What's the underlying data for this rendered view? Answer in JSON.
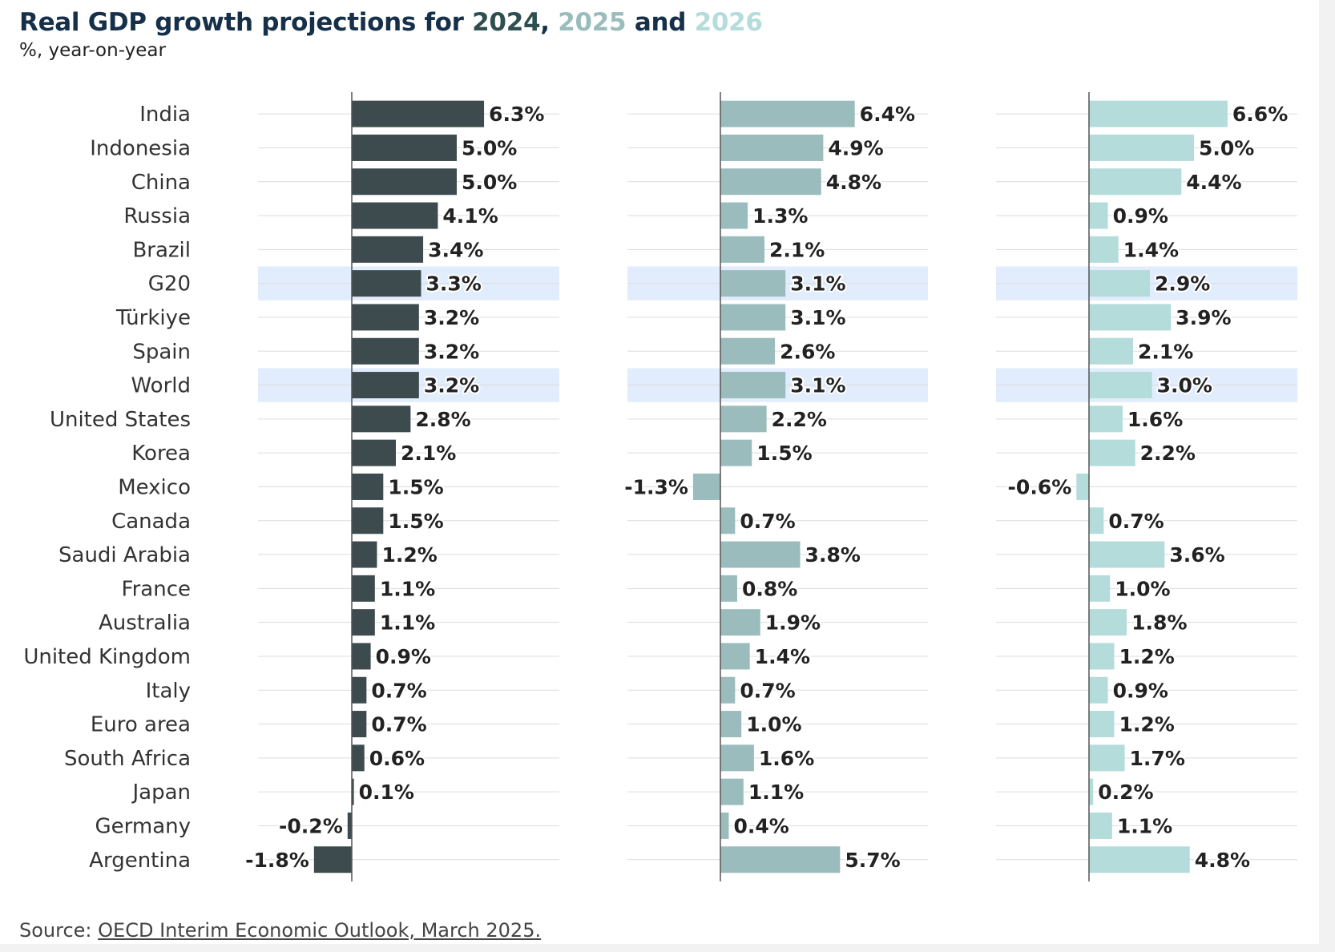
{
  "title": {
    "prefix": "Real GDP growth projections for ",
    "year1": "2024",
    "sep1": ", ",
    "year2": "2025",
    "sep2": " and ",
    "year3": "2026"
  },
  "subtitle": "%, year-on-year",
  "source": {
    "label": "Source: ",
    "link_text": "OECD Interim Economic Outlook, March 2025."
  },
  "colors": {
    "s2024": "#3d4b4f",
    "s2025": "#9bbcbd",
    "s2026": "#b3dcdb",
    "highlight": "#e1edfc",
    "title": "#16304a"
  },
  "chart_data": {
    "type": "bar",
    "orientation": "horizontal",
    "categories": [
      "India",
      "Indonesia",
      "China",
      "Russia",
      "Brazil",
      "G20",
      "Türkiye",
      "Spain",
      "World",
      "United States",
      "Korea",
      "Mexico",
      "Canada",
      "Saudi Arabia",
      "France",
      "Australia",
      "United Kingdom",
      "Italy",
      "Euro area",
      "South Africa",
      "Japan",
      "Germany",
      "Argentina"
    ],
    "highlighted_categories": [
      "G20",
      "World"
    ],
    "value_suffix": "%",
    "series": [
      {
        "name": "2024",
        "values": [
          6.3,
          5.0,
          5.0,
          4.1,
          3.4,
          3.3,
          3.2,
          3.2,
          3.2,
          2.8,
          2.1,
          1.5,
          1.5,
          1.2,
          1.1,
          1.1,
          0.9,
          0.7,
          0.7,
          0.6,
          0.1,
          -0.2,
          -1.8
        ]
      },
      {
        "name": "2025",
        "values": [
          6.4,
          4.9,
          4.8,
          1.3,
          2.1,
          3.1,
          3.1,
          2.6,
          3.1,
          2.2,
          1.5,
          -1.3,
          0.7,
          3.8,
          0.8,
          1.9,
          1.4,
          0.7,
          1.0,
          1.6,
          1.1,
          0.4,
          5.7
        ]
      },
      {
        "name": "2026",
        "values": [
          6.6,
          5.0,
          4.4,
          0.9,
          1.4,
          2.9,
          3.9,
          2.1,
          3.0,
          1.6,
          2.2,
          -0.6,
          0.7,
          3.6,
          1.0,
          1.8,
          1.2,
          0.9,
          1.2,
          1.7,
          0.2,
          1.1,
          4.8
        ]
      }
    ],
    "grid": true,
    "legend": "title"
  }
}
